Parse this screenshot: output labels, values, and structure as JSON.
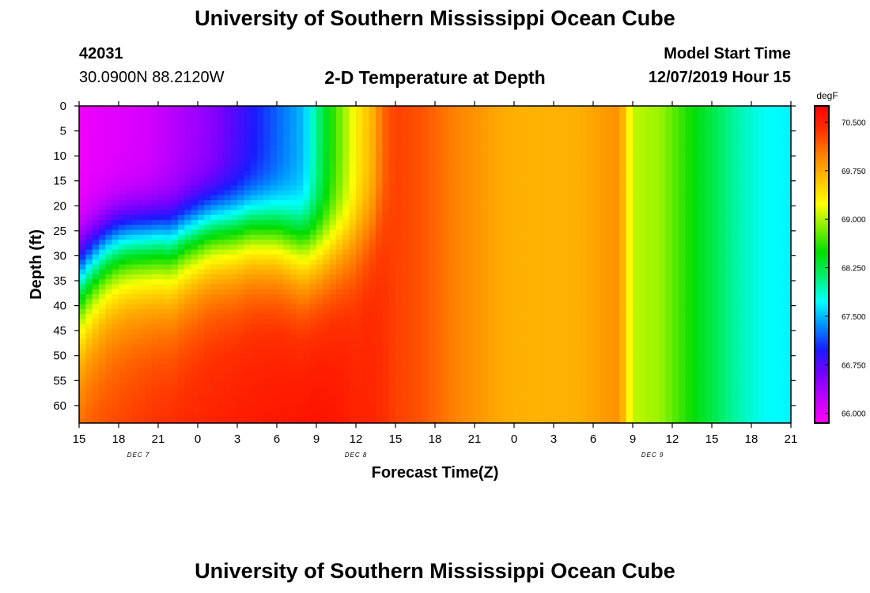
{
  "page": {
    "title_top": "University of Southern Mississippi Ocean Cube",
    "title_bottom": "University of Southern Mississippi Ocean Cube",
    "station_id": "42031",
    "station_coords": "30.0900N 88.2120W",
    "plot_title": "2-D Temperature at Depth",
    "model_start_label": "Model Start Time",
    "model_start_value": "12/07/2019 Hour 15"
  },
  "chart_data": {
    "type": "heatmap",
    "title": "2-D Temperature at Depth",
    "xlabel": "Forecast Time(Z)",
    "ylabel": "Depth (ft)",
    "x_tick_labels": [
      "15",
      "18",
      "21",
      "0",
      "3",
      "6",
      "9",
      "12",
      "15",
      "18",
      "21",
      "0",
      "3",
      "6",
      "9",
      "12",
      "15",
      "18",
      "21"
    ],
    "x_hours_from_start": [
      0,
      3,
      6,
      9,
      12,
      15,
      18,
      21,
      24,
      27,
      30,
      33,
      36,
      39,
      42,
      45,
      48,
      51,
      54
    ],
    "x_range_hours": [
      0,
      54
    ],
    "date_labels": [
      {
        "text": "DEC 7",
        "hour": 4.5
      },
      {
        "text": "DEC 8",
        "hour": 21
      },
      {
        "text": "DEC 9",
        "hour": 43.5
      }
    ],
    "y_tick_labels": [
      0,
      5,
      10,
      15,
      20,
      25,
      30,
      35,
      40,
      45,
      50,
      55,
      60
    ],
    "y_range_ft": [
      0,
      63.5
    ],
    "y_inverted": true,
    "colorbar": {
      "unit": "degF",
      "range": [
        65.85,
        70.75
      ],
      "tick_values": [
        66.0,
        66.75,
        67.5,
        68.25,
        69.0,
        69.75,
        70.5
      ],
      "tick_labels": [
        "66.000",
        "66.750",
        "67.500",
        "68.250",
        "69.000",
        "69.750",
        "70.500"
      ],
      "colors": [
        "#ff00ff",
        "#c000ff",
        "#7800ff",
        "#1a1aff",
        "#0090ff",
        "#00ffff",
        "#00f070",
        "#00dd00",
        "#80f000",
        "#ffff00",
        "#ffc000",
        "#ff8000",
        "#ff3000",
        "#ff0000"
      ]
    },
    "series": [
      {
        "name": "thermocline_depth_ft",
        "hours": [
          0,
          1,
          2,
          3,
          4,
          5,
          6,
          7,
          8,
          9,
          10,
          11,
          12,
          13,
          14,
          15,
          16,
          17,
          18,
          19,
          20,
          21,
          22,
          23
        ],
        "values": [
          37.5,
          34,
          31.5,
          30,
          29.5,
          29.5,
          29.5,
          30,
          28.5,
          27.5,
          26.5,
          26.5,
          26.5,
          26,
          26.5,
          27,
          28.5,
          30,
          30.5,
          30,
          29.5,
          28.5,
          26.5,
          23
        ]
      },
      {
        "name": "surface_temperature_degF",
        "hours": [
          0,
          5,
          10,
          17,
          18,
          19,
          20,
          20.5,
          21,
          21.5,
          22,
          22.5,
          23,
          24,
          26,
          29,
          32,
          34,
          38,
          41,
          42,
          44,
          46,
          47,
          48,
          50,
          51,
          52,
          54
        ],
        "values": [
          65.95,
          66.1,
          66.5,
          67.5,
          68.0,
          68.5,
          68.9,
          69.1,
          69.3,
          69.5,
          69.6,
          69.8,
          70.1,
          70.3,
          70.2,
          69.95,
          69.75,
          69.7,
          69.72,
          69.9,
          69.05,
          68.95,
          68.6,
          68.4,
          68.25,
          67.95,
          67.85,
          67.75,
          67.7
        ]
      },
      {
        "name": "bottom_temperature_degF",
        "hours": [
          0,
          3,
          6,
          9,
          12,
          15,
          18,
          20,
          21,
          22,
          23,
          24,
          26,
          29,
          32,
          34,
          38,
          41,
          42,
          44,
          46,
          47,
          48,
          50,
          51,
          52,
          54
        ],
        "values": [
          70.35,
          70.4,
          70.5,
          70.55,
          70.6,
          70.65,
          70.7,
          70.6,
          70.5,
          70.5,
          70.4,
          70.3,
          70.2,
          69.95,
          69.75,
          69.7,
          69.72,
          69.9,
          69.05,
          68.95,
          68.6,
          68.4,
          68.25,
          67.95,
          67.85,
          67.75,
          67.7
        ]
      }
    ]
  }
}
